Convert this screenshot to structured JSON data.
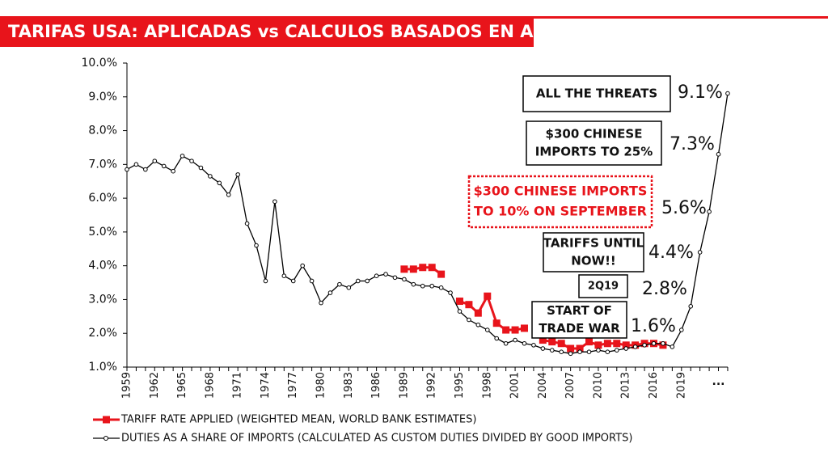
{
  "chart_data": {
    "type": "line",
    "title": "TARIFAS USA: APLICADAS vs CALCULOS BASADOS EN ADUANAS",
    "categories": [
      "1959",
      null,
      null,
      "1962",
      null,
      null,
      "1965",
      null,
      null,
      "1968",
      null,
      null,
      "1971",
      null,
      null,
      "1974",
      null,
      null,
      "1977",
      null,
      null,
      "1980",
      null,
      null,
      "1983",
      null,
      null,
      "1986",
      null,
      null,
      "1989",
      null,
      null,
      "1992",
      null,
      null,
      "1995",
      null,
      null,
      "1998",
      null,
      null,
      "2001",
      null,
      null,
      "2004",
      null,
      null,
      "2007",
      null,
      null,
      "2010",
      null,
      null,
      "2013",
      null,
      null,
      "2016",
      null,
      null,
      "2019",
      null,
      null,
      null,
      "...",
      null
    ],
    "ylim": [
      1,
      10
    ],
    "yticks": [
      {
        "value": 1,
        "label": "1.0%"
      },
      {
        "value": 2,
        "label": "2.0%"
      },
      {
        "value": 3,
        "label": "3.0%"
      },
      {
        "value": 4,
        "label": "4.0%"
      },
      {
        "value": 5,
        "label": "5.0%"
      },
      {
        "value": 6,
        "label": "6.0%"
      },
      {
        "value": 7,
        "label": "7.0%"
      },
      {
        "value": 8,
        "label": "8.0%"
      },
      {
        "value": 9,
        "label": "9.0%"
      },
      {
        "value": 10,
        "label": "10.0%"
      }
    ],
    "grid": false,
    "series": [
      {
        "name": "TARIFF RATE APPLIED (WEIGHTED MEAN, WORLD BANK ESTIMATES)",
        "color": "#e8141b",
        "marker": "square",
        "values": [
          null,
          null,
          null,
          null,
          null,
          null,
          null,
          null,
          null,
          null,
          null,
          null,
          null,
          null,
          null,
          null,
          null,
          null,
          null,
          null,
          null,
          null,
          null,
          null,
          null,
          null,
          null,
          null,
          null,
          null,
          3.9,
          3.9,
          3.95,
          3.95,
          3.75,
          null,
          2.95,
          2.85,
          2.6,
          3.1,
          2.3,
          2.1,
          2.1,
          2.15,
          null,
          1.8,
          1.75,
          1.7,
          1.55,
          1.55,
          1.75,
          1.65,
          1.7,
          1.7,
          1.65,
          1.65,
          1.7,
          1.7,
          1.65,
          null,
          null,
          null,
          null,
          null,
          null,
          null
        ]
      },
      {
        "name": "DUTIES AS A SHARE OF IMPORTS (CALCULATED AS CUSTOM DUTIES DIVIDED BY GOOD IMPORTS)",
        "color": "#000000",
        "marker": "circle",
        "values": [
          6.85,
          7.0,
          6.85,
          7.1,
          6.95,
          6.8,
          7.25,
          7.1,
          6.9,
          6.65,
          6.45,
          6.1,
          6.7,
          5.25,
          4.6,
          3.55,
          5.9,
          3.7,
          3.55,
          4.0,
          3.55,
          2.9,
          3.2,
          3.45,
          3.35,
          3.55,
          3.55,
          3.7,
          3.75,
          3.65,
          3.6,
          3.45,
          3.4,
          3.4,
          3.35,
          3.2,
          2.65,
          2.4,
          2.25,
          2.1,
          1.85,
          1.7,
          1.8,
          1.7,
          1.65,
          1.55,
          1.5,
          1.45,
          1.4,
          1.45,
          1.45,
          1.5,
          1.45,
          1.5,
          1.55,
          1.6,
          1.65,
          1.7,
          1.7,
          1.6,
          2.1,
          2.8,
          4.4,
          5.6,
          7.3,
          9.1
        ],
        "value_labels": [
          null,
          null,
          null,
          null,
          null,
          null,
          null,
          null,
          null,
          null,
          null,
          null,
          null,
          null,
          null,
          null,
          null,
          null,
          null,
          null,
          null,
          null,
          null,
          null,
          null,
          null,
          null,
          null,
          null,
          null,
          null,
          null,
          null,
          null,
          null,
          null,
          null,
          null,
          null,
          null,
          null,
          null,
          null,
          null,
          null,
          null,
          null,
          null,
          null,
          null,
          null,
          null,
          null,
          null,
          null,
          null,
          null,
          null,
          null,
          "1.6%",
          null,
          "2.8%",
          "4.4%",
          "5.6%",
          "7.3%",
          "9.1%"
        ]
      }
    ],
    "annotations": [
      {
        "lines": [
          "ALL THE THREATS"
        ]
      },
      {
        "lines": [
          "$300 CHINESE",
          "IMPORTS TO 25%"
        ]
      },
      {
        "lines": [
          "$300 CHINESE IMPORTS",
          "TO 10% ON SEPTEMBER"
        ]
      },
      {
        "lines": [
          "TARIFFS UNTIL",
          "NOW!!"
        ]
      },
      {
        "lines": [
          "2Q19"
        ]
      },
      {
        "lines": [
          "START OF",
          "TRADE WAR"
        ]
      }
    ]
  }
}
